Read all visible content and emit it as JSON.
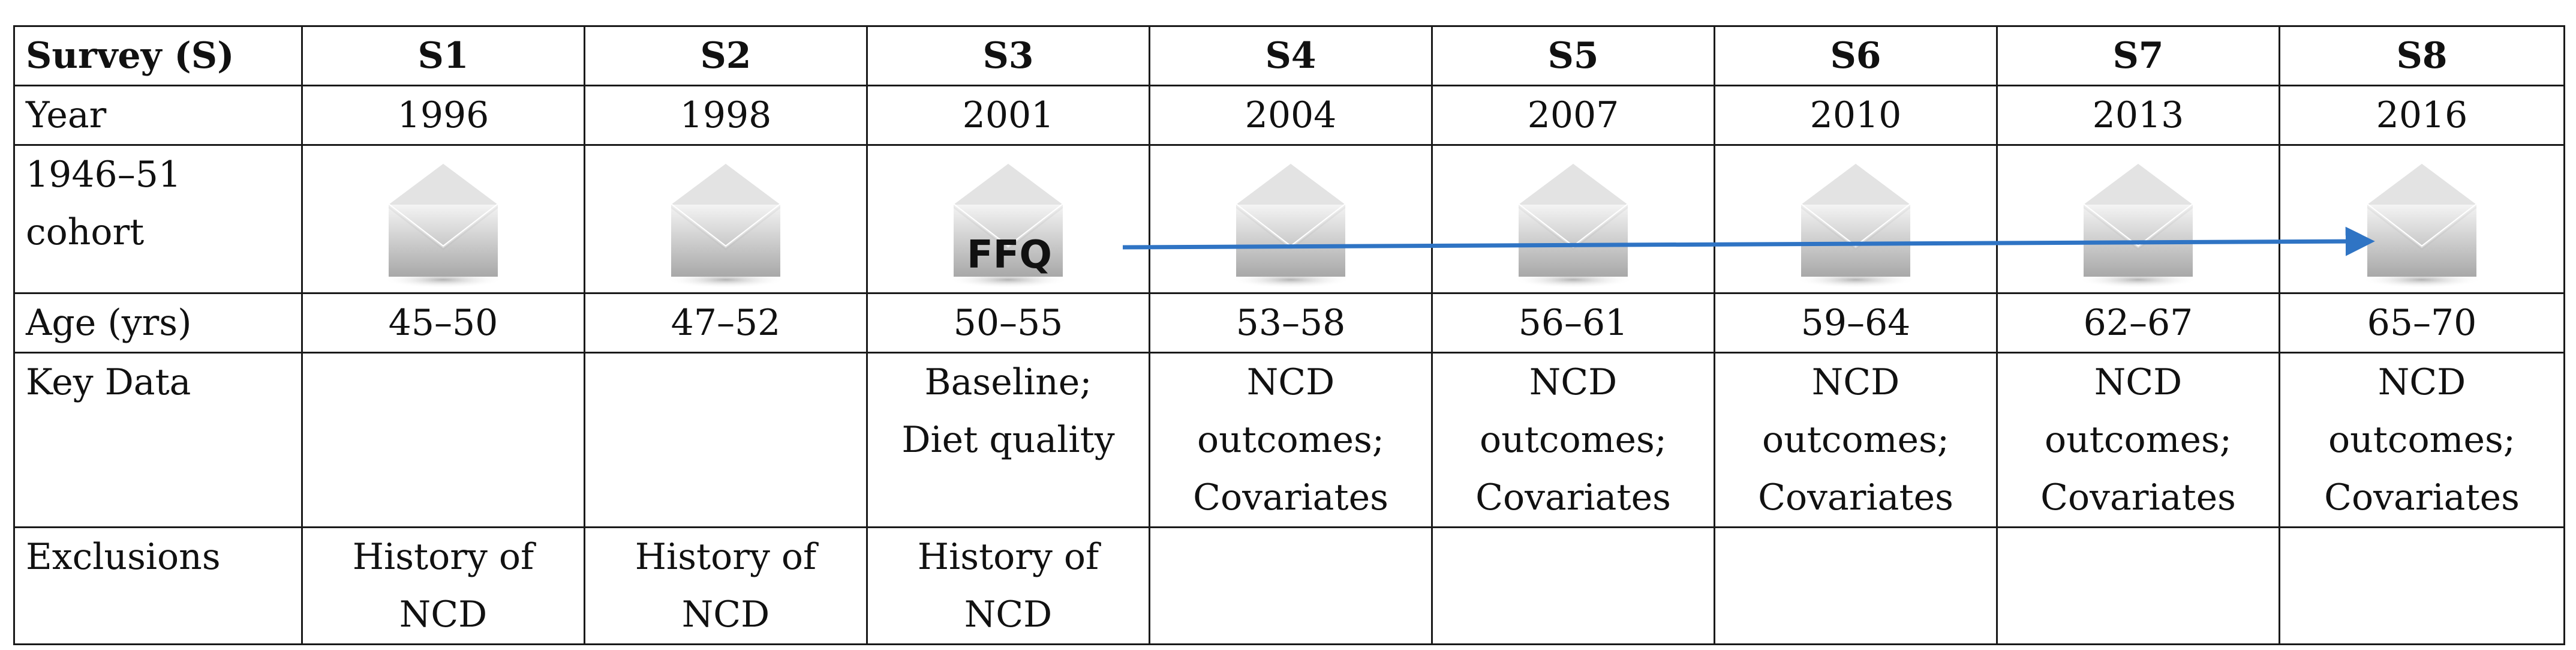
{
  "table": {
    "header": [
      "Survey (S)",
      "S1",
      "S2",
      "S3",
      "S4",
      "S5",
      "S6",
      "S7",
      "S8"
    ],
    "year": {
      "label": "Year",
      "values": [
        "1996",
        "1998",
        "2001",
        "2004",
        "2007",
        "2010",
        "2013",
        "2016"
      ]
    },
    "cohort": {
      "label_line1": "1946–51",
      "label_line2": "cohort"
    },
    "age": {
      "label": "Age (yrs)",
      "values": [
        "45–50",
        "47–52",
        "50–55",
        "53–58",
        "56–61",
        "59–64",
        "62–67",
        "65–70"
      ]
    },
    "key_data": {
      "label": "Key Data",
      "values": [
        [],
        [],
        [
          "Baseline;",
          "Diet quality"
        ],
        [
          "NCD",
          "outcomes;",
          "Covariates"
        ],
        [
          "NCD",
          "outcomes;",
          "Covariates"
        ],
        [
          "NCD",
          "outcomes;",
          "Covariates"
        ],
        [
          "NCD",
          "outcomes;",
          "Covariates"
        ],
        [
          "NCD",
          "outcomes;",
          "Covariates"
        ]
      ]
    },
    "exclusions": {
      "label": "Exclusions",
      "values": [
        [
          "History of",
          "NCD"
        ],
        [
          "History of",
          "NCD"
        ],
        [
          "History of",
          "NCD"
        ],
        [],
        [],
        [],
        [],
        []
      ]
    }
  },
  "annotation": {
    "ffq_label": "FFQ",
    "arrow_color": "#2f74c4"
  },
  "icons": {
    "survey_icon": "envelope-icon"
  }
}
